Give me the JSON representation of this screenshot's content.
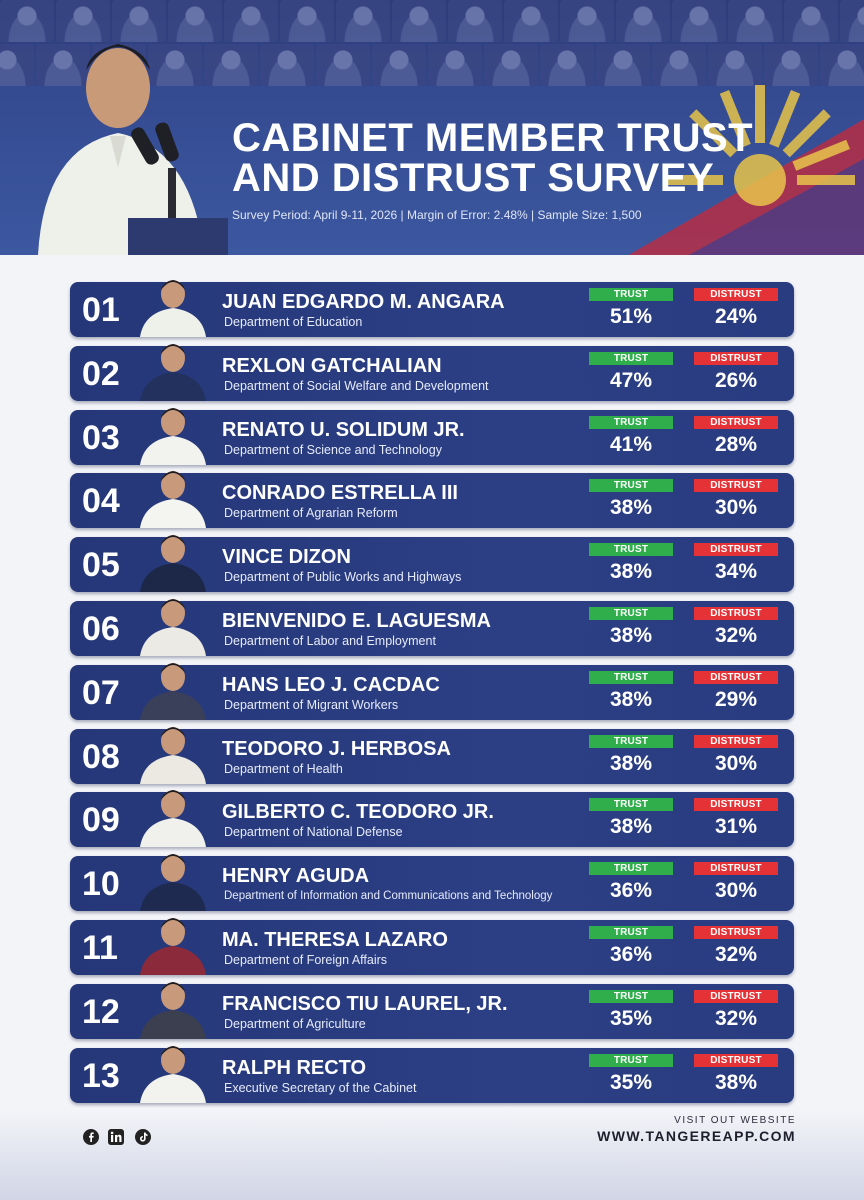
{
  "header": {
    "title_line1": "CABINET MEMBER TRUST",
    "title_line2": "AND DISTRUST SURVEY",
    "survey_period": "Survey Period: April 9-11, 2026 | Margin of Error: 2.48% | Sample Size: 1,500"
  },
  "labels": {
    "trust": "TRUST",
    "distrust": "DISTRUST"
  },
  "colors": {
    "row_bg": "#2a3c80",
    "trust": "#2fae4b",
    "distrust": "#e53236",
    "header_bg": "#334a8c"
  },
  "rows": [
    {
      "rank": "01",
      "name": "JUAN EDGARDO M. ANGARA",
      "department": "Department of Education",
      "trust": "51%",
      "distrust": "24%"
    },
    {
      "rank": "02",
      "name": "REXLON GATCHALIAN",
      "department": "Department of Social Welfare and Development",
      "trust": "47%",
      "distrust": "26%"
    },
    {
      "rank": "03",
      "name": "RENATO U. SOLIDUM JR.",
      "department": "Department of Science and Technology",
      "trust": "41%",
      "distrust": "28%"
    },
    {
      "rank": "04",
      "name": "CONRADO ESTRELLA III",
      "department": "Department of Agrarian Reform",
      "trust": "38%",
      "distrust": "30%"
    },
    {
      "rank": "05",
      "name": "VINCE DIZON",
      "department": "Department of Public Works and Highways",
      "trust": "38%",
      "distrust": "34%"
    },
    {
      "rank": "06",
      "name": "BIENVENIDO E. LAGUESMA",
      "department": "Department of Labor and Employment",
      "trust": "38%",
      "distrust": "32%"
    },
    {
      "rank": "07",
      "name": "HANS LEO J. CACDAC",
      "department": "Department of Migrant Workers",
      "trust": "38%",
      "distrust": "29%"
    },
    {
      "rank": "08",
      "name": "TEODORO J. HERBOSA",
      "department": "Department of Health",
      "trust": "38%",
      "distrust": "30%"
    },
    {
      "rank": "09",
      "name": "GILBERTO C. TEODORO JR.",
      "department": "Department of National Defense",
      "trust": "38%",
      "distrust": "31%"
    },
    {
      "rank": "10",
      "name": "HENRY AGUDA",
      "department": "Department of Information and Communications and Technology",
      "trust": "36%",
      "distrust": "30%"
    },
    {
      "rank": "11",
      "name": "MA. THERESA LAZARO",
      "department": "Department of Foreign Affairs",
      "trust": "36%",
      "distrust": "32%"
    },
    {
      "rank": "12",
      "name": "FRANCISCO TIU LAUREL, JR.",
      "department": "Department of Agriculture",
      "trust": "35%",
      "distrust": "32%"
    },
    {
      "rank": "13",
      "name": "RALPH RECTO",
      "department": "Executive Secretary of the Cabinet",
      "trust": "35%",
      "distrust": "38%"
    }
  ],
  "footer": {
    "visit_label": "VISIT OUT WEBSITE",
    "website": "WWW.TANGEREAPP.COM",
    "social_icons": [
      "facebook-icon",
      "linkedin-icon",
      "tiktok-icon"
    ]
  }
}
